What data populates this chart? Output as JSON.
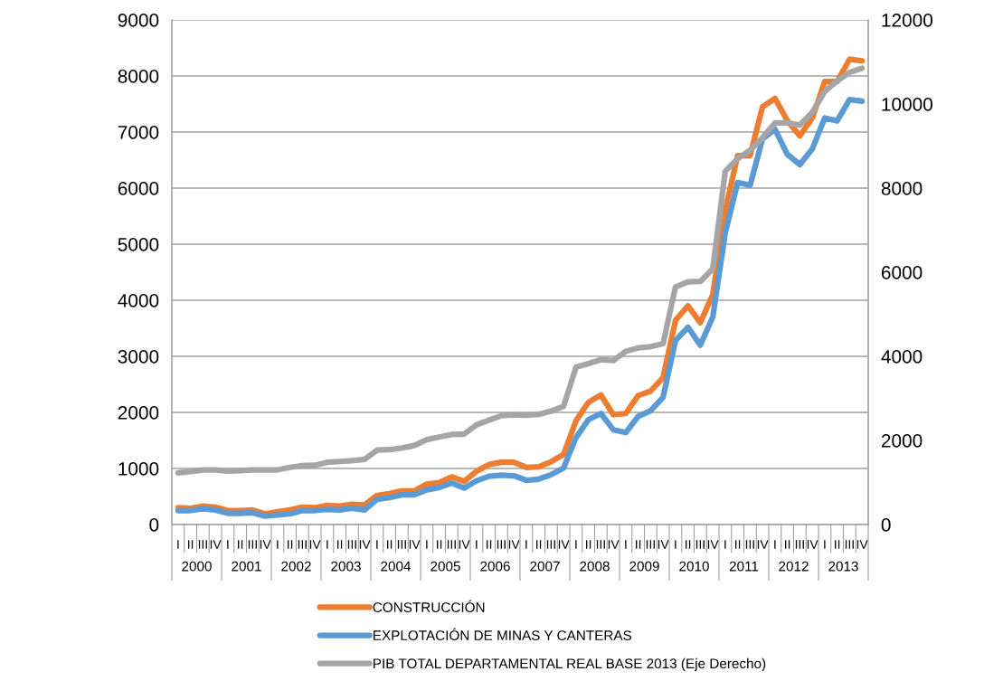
{
  "chart_data": {
    "type": "line",
    "categories": [
      "I",
      "II",
      "III",
      "IV",
      "I",
      "II",
      "III",
      "IV",
      "I",
      "II",
      "III",
      "IV",
      "I",
      "II",
      "III",
      "IV",
      "I",
      "II",
      "III",
      "IV",
      "I",
      "II",
      "III",
      "IV",
      "I",
      "II",
      "III",
      "IV",
      "I",
      "II",
      "III",
      "IV",
      "I",
      "II",
      "III",
      "IV",
      "I",
      "II",
      "III",
      "IV",
      "I",
      "II",
      "III",
      "IV",
      "I",
      "II",
      "III",
      "IV",
      "I",
      "II",
      "III",
      "IV",
      "I",
      "II",
      "III",
      "IV"
    ],
    "annotations": [
      "2000",
      "2001",
      "2002",
      "2003",
      "2004",
      "2005",
      "2006",
      "2007",
      "2008",
      "2009",
      "2010",
      "2011",
      "2012",
      "2013"
    ],
    "series": [
      {
        "name": "CONSTRUCCIÓN",
        "color": "#ed7d31",
        "values": [
          300,
          290,
          330,
          310,
          250,
          250,
          260,
          190,
          230,
          260,
          310,
          300,
          340,
          330,
          360,
          350,
          520,
          550,
          600,
          600,
          720,
          750,
          850,
          770,
          950,
          1070,
          1110,
          1110,
          1020,
          1030,
          1120,
          1250,
          1850,
          2180,
          2310,
          1960,
          1980,
          2300,
          2380,
          2620,
          3640,
          3900,
          3600,
          4100,
          5600,
          6580,
          6580,
          7450,
          7600,
          7200,
          6930,
          7250,
          7900,
          7900,
          8300,
          8270
        ]
      },
      {
        "name": "EXPLOTACIÓN DE MINAS Y CANTERAS",
        "color": "#5b9bd5",
        "values": [
          250,
          250,
          280,
          260,
          200,
          200,
          210,
          150,
          170,
          190,
          250,
          250,
          270,
          260,
          290,
          260,
          450,
          480,
          530,
          530,
          620,
          660,
          740,
          650,
          780,
          860,
          880,
          870,
          790,
          810,
          890,
          1010,
          1550,
          1870,
          1980,
          1690,
          1640,
          1930,
          2030,
          2270,
          3280,
          3520,
          3200,
          3700,
          5200,
          6100,
          6050,
          6880,
          7050,
          6600,
          6420,
          6700,
          7250,
          7200,
          7580,
          7550
        ]
      },
      {
        "name": "PIB TOTAL DEPARTAMENTAL REAL BASE 2013 (Eje Derecho)",
        "color": "#a5a5a5",
        "axis": "y2",
        "values": [
          1230,
          1260,
          1300,
          1300,
          1270,
          1280,
          1300,
          1300,
          1300,
          1360,
          1400,
          1410,
          1480,
          1500,
          1520,
          1550,
          1770,
          1780,
          1820,
          1880,
          2020,
          2080,
          2140,
          2150,
          2370,
          2480,
          2590,
          2610,
          2600,
          2620,
          2700,
          2810,
          3740,
          3830,
          3920,
          3900,
          4120,
          4200,
          4230,
          4300,
          5650,
          5770,
          5780,
          6080,
          8400,
          8700,
          8900,
          9200,
          9550,
          9550,
          9500,
          9800,
          10300,
          10550,
          10750,
          10850
        ]
      }
    ],
    "ylim": [
      0,
      9000
    ],
    "yticks": [
      0,
      1000,
      2000,
      3000,
      4000,
      5000,
      6000,
      7000,
      8000,
      9000
    ],
    "y2lim": [
      0,
      12000
    ],
    "y2ticks": [
      0,
      2000,
      4000,
      6000,
      8000,
      10000,
      12000
    ],
    "grid": "y",
    "legend": "bottom",
    "marker": "none",
    "line_style": "solid"
  }
}
